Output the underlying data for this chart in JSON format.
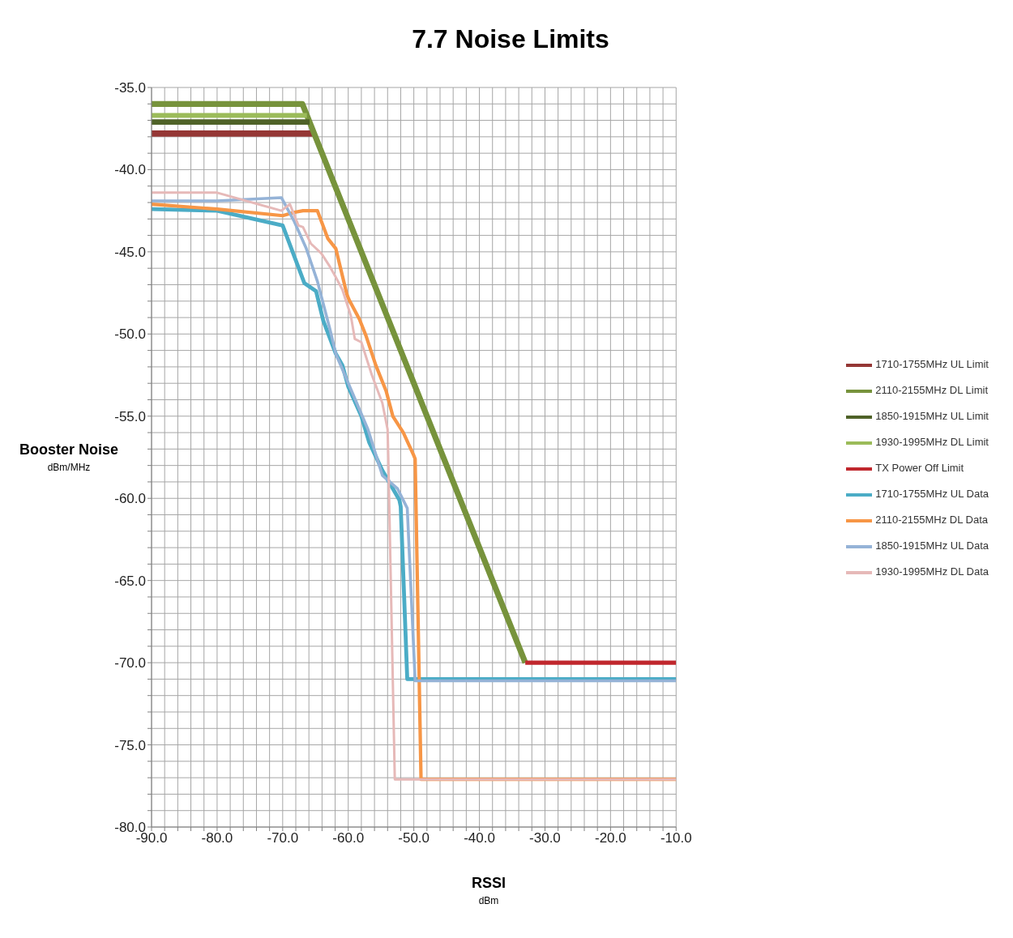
{
  "chart_data": {
    "type": "line",
    "title": "7.7 Noise Limits",
    "xlabel": "RSSI\ndBm",
    "ylabel": "Booster Noise\ndBm/MHz",
    "xlim": [
      -90,
      -10
    ],
    "xticks": [
      {
        "value": -90,
        "label": "-90.0"
      },
      {
        "value": -88,
        "label": null
      },
      {
        "value": -86,
        "label": null
      },
      {
        "value": -84,
        "label": null
      },
      {
        "value": -82,
        "label": null
      },
      {
        "value": -80,
        "label": "-80.0"
      },
      {
        "value": -78,
        "label": null
      },
      {
        "value": -76,
        "label": null
      },
      {
        "value": -74,
        "label": null
      },
      {
        "value": -72,
        "label": null
      },
      {
        "value": -70,
        "label": "-70.0"
      },
      {
        "value": -68,
        "label": null
      },
      {
        "value": -66,
        "label": null
      },
      {
        "value": -64,
        "label": null
      },
      {
        "value": -62,
        "label": null
      },
      {
        "value": -60,
        "label": "-60.0"
      },
      {
        "value": -58,
        "label": null
      },
      {
        "value": -56,
        "label": null
      },
      {
        "value": -54,
        "label": null
      },
      {
        "value": -52,
        "label": null
      },
      {
        "value": -50,
        "label": "-50.0"
      },
      {
        "value": -48,
        "label": null
      },
      {
        "value": -46,
        "label": null
      },
      {
        "value": -44,
        "label": null
      },
      {
        "value": -42,
        "label": null
      },
      {
        "value": -40,
        "label": "-40.0"
      },
      {
        "value": -38,
        "label": null
      },
      {
        "value": -36,
        "label": null
      },
      {
        "value": -34,
        "label": null
      },
      {
        "value": -32,
        "label": null
      },
      {
        "value": -30,
        "label": "-30.0"
      },
      {
        "value": -28,
        "label": null
      },
      {
        "value": -26,
        "label": null
      },
      {
        "value": -24,
        "label": null
      },
      {
        "value": -22,
        "label": null
      },
      {
        "value": -20,
        "label": "-20.0"
      },
      {
        "value": -18,
        "label": null
      },
      {
        "value": -16,
        "label": null
      },
      {
        "value": -14,
        "label": null
      },
      {
        "value": -12,
        "label": null
      },
      {
        "value": -10,
        "label": "-10.0"
      }
    ],
    "ylim": [
      -80,
      -35
    ],
    "yticks": [
      {
        "value": -80,
        "label": "-80.0"
      },
      {
        "value": -79,
        "label": null
      },
      {
        "value": -78,
        "label": null
      },
      {
        "value": -77,
        "label": null
      },
      {
        "value": -76,
        "label": null
      },
      {
        "value": -75,
        "label": "-75.0"
      },
      {
        "value": -74,
        "label": null
      },
      {
        "value": -73,
        "label": null
      },
      {
        "value": -72,
        "label": null
      },
      {
        "value": -71,
        "label": null
      },
      {
        "value": -70,
        "label": "-70.0"
      },
      {
        "value": -69,
        "label": null
      },
      {
        "value": -68,
        "label": null
      },
      {
        "value": -67,
        "label": null
      },
      {
        "value": -66,
        "label": null
      },
      {
        "value": -65,
        "label": "-65.0"
      },
      {
        "value": -64,
        "label": null
      },
      {
        "value": -63,
        "label": null
      },
      {
        "value": -62,
        "label": null
      },
      {
        "value": -61,
        "label": null
      },
      {
        "value": -60,
        "label": "-60.0"
      },
      {
        "value": -59,
        "label": null
      },
      {
        "value": -58,
        "label": null
      },
      {
        "value": -57,
        "label": null
      },
      {
        "value": -56,
        "label": null
      },
      {
        "value": -55,
        "label": "-55.0"
      },
      {
        "value": -54,
        "label": null
      },
      {
        "value": -53,
        "label": null
      },
      {
        "value": -52,
        "label": null
      },
      {
        "value": -51,
        "label": null
      },
      {
        "value": -50,
        "label": "-50.0"
      },
      {
        "value": -49,
        "label": null
      },
      {
        "value": -48,
        "label": null
      },
      {
        "value": -47,
        "label": null
      },
      {
        "value": -46,
        "label": null
      },
      {
        "value": -45,
        "label": "-45.0"
      },
      {
        "value": -44,
        "label": null
      },
      {
        "value": -43,
        "label": null
      },
      {
        "value": -42,
        "label": null
      },
      {
        "value": -41,
        "label": null
      },
      {
        "value": -40,
        "label": "-40.0"
      },
      {
        "value": -39,
        "label": null
      },
      {
        "value": -38,
        "label": null
      },
      {
        "value": -37,
        "label": null
      },
      {
        "value": -36,
        "label": null
      },
      {
        "value": -35,
        "label": "-35.0"
      }
    ],
    "grid": true,
    "legend": "right",
    "marker": "none",
    "line_style": "solid",
    "series": [
      {
        "name": "1710-1755MHz UL Limit",
        "color": "#953735",
        "x": [
          -90,
          -66,
          -65.2
        ],
        "values": [
          -37.8,
          -37.8,
          -37.8
        ]
      },
      {
        "name": "2110-2155MHz DL Limit",
        "color": "#77933c",
        "x": [
          -90,
          -67,
          -33
        ],
        "values": [
          -36,
          -36,
          -70
        ]
      },
      {
        "name": "1850-1915MHz UL Limit",
        "color": "#4f6228",
        "x": [
          -90,
          -66.3,
          -65.9
        ],
        "values": [
          -37.1,
          -37.1,
          -37.1
        ]
      },
      {
        "name": "1930-1995MHz DL Limit",
        "color": "#9bbb59",
        "x": [
          -90,
          -66.8,
          -66.3
        ],
        "values": [
          -36.7,
          -36.7,
          -36.7
        ]
      },
      {
        "name": "TX Power Off Limit",
        "color": "#c0272d",
        "x": [
          -33,
          -10
        ],
        "values": [
          -70,
          -70
        ]
      },
      {
        "name": "1710-1755MHz UL Data",
        "color": "#4bacc6",
        "x": [
          -90,
          -80,
          -70,
          -66.7,
          -64.9,
          -63.8,
          -61.9,
          -60.9,
          -60,
          -58,
          -56.8,
          -54.8,
          -52.2,
          -52,
          -51,
          -10
        ],
        "values": [
          -42.4,
          -42.5,
          -43.4,
          -46.9,
          -47.4,
          -49.2,
          -51.2,
          -51.9,
          -53.2,
          -55,
          -56.6,
          -58.3,
          -60.1,
          -60.5,
          -71,
          -71
        ]
      },
      {
        "name": "2110-2155MHz DL Data",
        "color": "#f79646",
        "x": [
          -90,
          -80,
          -70,
          -68.3,
          -66.9,
          -64.7,
          -63.1,
          -61.9,
          -60.2,
          -59.9,
          -58.3,
          -57.3,
          -55.8,
          -54.2,
          -53.2,
          -51.6,
          -50,
          -49.8,
          -48.9,
          -10
        ],
        "values": [
          -42.1,
          -42.4,
          -42.8,
          -42.6,
          -42.5,
          -42.5,
          -44.2,
          -44.8,
          -47.6,
          -47.9,
          -49.1,
          -50.1,
          -51.9,
          -53.5,
          -55,
          -56,
          -57.4,
          -57.6,
          -77.1,
          -77.1
        ]
      },
      {
        "name": "1850-1915MHz UL Data",
        "color": "#95b3d7",
        "x": [
          -90,
          -80,
          -70.2,
          -68.3,
          -66.4,
          -64.7,
          -62.8,
          -61.9,
          -57,
          -54.8,
          -52.5,
          -51,
          -49.8,
          -10
        ],
        "values": [
          -41.9,
          -41.9,
          -41.7,
          -43.1,
          -44.8,
          -46.8,
          -49.7,
          -51.2,
          -55.8,
          -58.6,
          -59.4,
          -60.6,
          -71.1,
          -71.1
        ]
      },
      {
        "name": "1930-1995MHz DL Data",
        "color": "#e6b9b8",
        "x": [
          -90,
          -80,
          -70.2,
          -68.9,
          -67.6,
          -66.9,
          -65.7,
          -64.1,
          -62.8,
          -62.1,
          -60.9,
          -59.6,
          -59,
          -58,
          -56.4,
          -54.8,
          -54,
          -53.9,
          -52.9,
          -10
        ],
        "values": [
          -41.4,
          -41.4,
          -42.5,
          -42.1,
          -43.4,
          -43.5,
          -44.5,
          -45.1,
          -45.9,
          -46.4,
          -47.3,
          -48.9,
          -50.3,
          -50.5,
          -52.5,
          -54.2,
          -55.8,
          -57.4,
          -77.1,
          -77.1
        ]
      }
    ]
  }
}
